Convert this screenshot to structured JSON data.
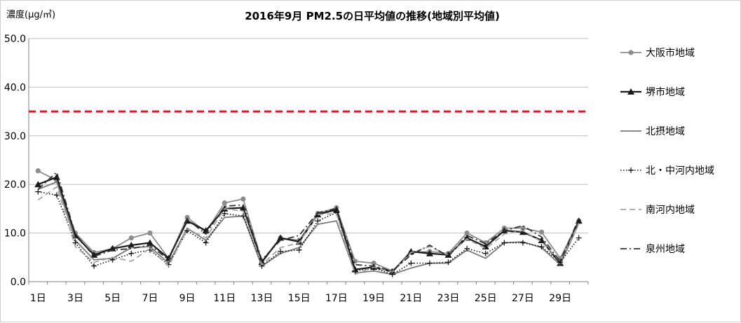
{
  "chart_data": {
    "type": "line",
    "title": "2016年9月  PM2.5の日平均値の推移(地域別平均値)",
    "ylabel": "濃度(μg/㎥)",
    "xlabel": "",
    "ylim": [
      0,
      50
    ],
    "yticks": [
      "0.0",
      "10.0",
      "20.0",
      "30.0",
      "40.0",
      "50.0"
    ],
    "ytick_values": [
      0,
      10,
      20,
      30,
      40,
      50
    ],
    "xtick_labels": [
      "1日",
      "3日",
      "5日",
      "7日",
      "9日",
      "11日",
      "13日",
      "15日",
      "17日",
      "19日",
      "21日",
      "23日",
      "25日",
      "27日",
      "29日"
    ],
    "xtick_days": [
      1,
      3,
      5,
      7,
      9,
      11,
      13,
      15,
      17,
      19,
      21,
      23,
      25,
      27,
      29
    ],
    "x": [
      1,
      2,
      3,
      4,
      5,
      6,
      7,
      8,
      9,
      10,
      11,
      12,
      13,
      14,
      15,
      16,
      17,
      18,
      19,
      20,
      21,
      22,
      23,
      24,
      25,
      26,
      27,
      28,
      29,
      30
    ],
    "grid": true,
    "legend_position": "right",
    "reference_line": {
      "value": 35,
      "color": "#e8141b"
    },
    "series": [
      {
        "name": "大阪市地域",
        "color": "#8c8c8c",
        "style": "solid-circle",
        "values": [
          22.8,
          20.8,
          10.0,
          6.0,
          6.8,
          9.0,
          10.0,
          4.8,
          13.2,
          10.2,
          16.2,
          17.0,
          4.2,
          9.0,
          8.5,
          14.0,
          15.2,
          4.2,
          3.8,
          2.2,
          6.0,
          6.2,
          5.8,
          10.0,
          8.0,
          11.0,
          11.0,
          10.2,
          4.8,
          12.5
        ]
      },
      {
        "name": "堺市地域",
        "color": "#1a1a1a",
        "style": "solid-triangle",
        "values": [
          20.0,
          21.5,
          9.5,
          5.5,
          6.8,
          7.5,
          8.0,
          4.8,
          12.5,
          10.5,
          15.0,
          15.2,
          4.0,
          9.0,
          8.2,
          13.8,
          14.8,
          2.5,
          3.0,
          2.0,
          6.2,
          5.8,
          5.5,
          9.0,
          7.2,
          10.5,
          10.2,
          8.5,
          3.8,
          12.5
        ]
      },
      {
        "name": "北摂地域",
        "color": "#7a7a7a",
        "style": "solid",
        "values": [
          19.0,
          20.5,
          8.5,
          4.5,
          4.8,
          7.0,
          7.2,
          3.8,
          11.0,
          8.5,
          13.2,
          13.5,
          3.2,
          5.8,
          7.0,
          11.8,
          12.5,
          1.8,
          2.2,
          1.5,
          2.8,
          3.8,
          3.8,
          6.5,
          4.8,
          8.0,
          8.2,
          7.0,
          3.5,
          12.0
        ]
      },
      {
        "name": "北・中河内地域",
        "color": "#111111",
        "style": "dotted-plus",
        "values": [
          18.5,
          17.8,
          8.0,
          3.2,
          4.5,
          5.8,
          6.5,
          3.5,
          10.5,
          8.0,
          14.0,
          13.5,
          3.2,
          6.2,
          6.5,
          12.5,
          14.2,
          2.2,
          2.8,
          1.5,
          3.8,
          3.8,
          4.0,
          6.8,
          5.8,
          8.0,
          8.0,
          7.2,
          4.0,
          9.0
        ]
      },
      {
        "name": "南河内地域",
        "color": "#a6a6a6",
        "style": "dashed",
        "values": [
          16.8,
          19.5,
          7.2,
          4.0,
          5.0,
          4.2,
          6.8,
          3.2,
          10.8,
          9.0,
          15.0,
          14.5,
          3.5,
          7.0,
          8.0,
          13.8,
          14.0,
          1.5,
          3.0,
          2.0,
          6.0,
          7.2,
          5.5,
          8.8,
          6.8,
          9.8,
          10.5,
          8.2,
          4.2,
          12.0
        ]
      },
      {
        "name": "泉州地域",
        "color": "#333333",
        "style": "dashdot",
        "values": [
          19.0,
          22.5,
          9.8,
          5.2,
          6.5,
          6.8,
          7.5,
          4.5,
          12.8,
          9.8,
          15.5,
          15.8,
          4.5,
          8.5,
          9.5,
          14.2,
          15.0,
          3.5,
          3.2,
          2.2,
          5.5,
          7.5,
          5.2,
          9.5,
          7.8,
          10.5,
          11.5,
          9.2,
          4.2,
          13.0
        ]
      }
    ]
  }
}
